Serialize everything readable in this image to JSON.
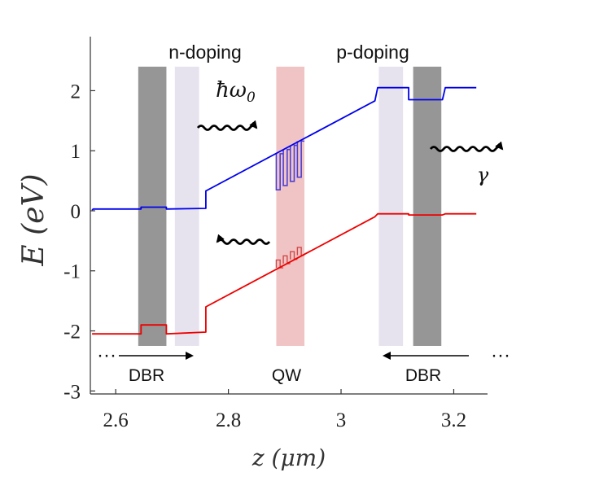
{
  "chart_data": {
    "type": "line",
    "xlabel": "z (μm)",
    "ylabel": "E (eV)",
    "xlim": [
      2.555,
      3.26
    ],
    "ylim": [
      -3.05,
      2.9
    ],
    "xticks": [
      "2.6",
      "2.8",
      "3",
      "3.2"
    ],
    "yticks": [
      "-3",
      "-2",
      "-1",
      "0",
      "1",
      "2"
    ],
    "series": [
      {
        "color": "#0000ee",
        "x": [
          2.558,
          2.56,
          2.645,
          2.645,
          2.69,
          2.69,
          2.76,
          2.76,
          3.06,
          3.065,
          3.12,
          3.12,
          3.18,
          3.185,
          3.24
        ],
        "y": [
          0.01,
          0.03,
          0.03,
          0.06,
          0.06,
          0.03,
          0.04,
          0.33,
          1.83,
          2.05,
          2.05,
          1.85,
          1.85,
          2.05,
          2.05
        ]
      },
      {
        "color": "#ee0000",
        "x": [
          2.558,
          2.56,
          2.645,
          2.645,
          2.69,
          2.69,
          2.76,
          2.76,
          3.06,
          3.065,
          3.12,
          3.12,
          3.18,
          3.185,
          3.24
        ],
        "y": [
          -2.05,
          -2.05,
          -2.05,
          -1.9,
          -1.9,
          -2.05,
          -2.02,
          -1.6,
          -0.1,
          -0.05,
          -0.05,
          -0.07,
          -0.07,
          -0.05,
          -0.05
        ]
      }
    ],
    "regions": [
      {
        "role": "DBR dark layer",
        "x0": 2.64,
        "x1": 2.69,
        "color": "#969696"
      },
      {
        "role": "DBR light layer",
        "x0": 2.705,
        "x1": 2.748,
        "color": "#e7e3ee"
      },
      {
        "role": "QW",
        "x0": 2.885,
        "x1": 2.935,
        "color": "#f0c4c4"
      },
      {
        "role": "DBR light layer",
        "x0": 3.067,
        "x1": 3.11,
        "color": "#e7e3ee"
      },
      {
        "role": "DBR dark layer",
        "x0": 3.128,
        "x1": 3.178,
        "color": "#969696"
      }
    ],
    "annotations": {
      "n_doping": "n-doping",
      "p_doping": "p-doping",
      "photon": "ħω",
      "photon_sub": "0",
      "gamma": "γ",
      "dbr_left": "DBR",
      "qw": "QW",
      "dbr_right": "DBR",
      "dots_left": "···",
      "dots_right": "···"
    },
    "grid": false,
    "legend": "none"
  }
}
